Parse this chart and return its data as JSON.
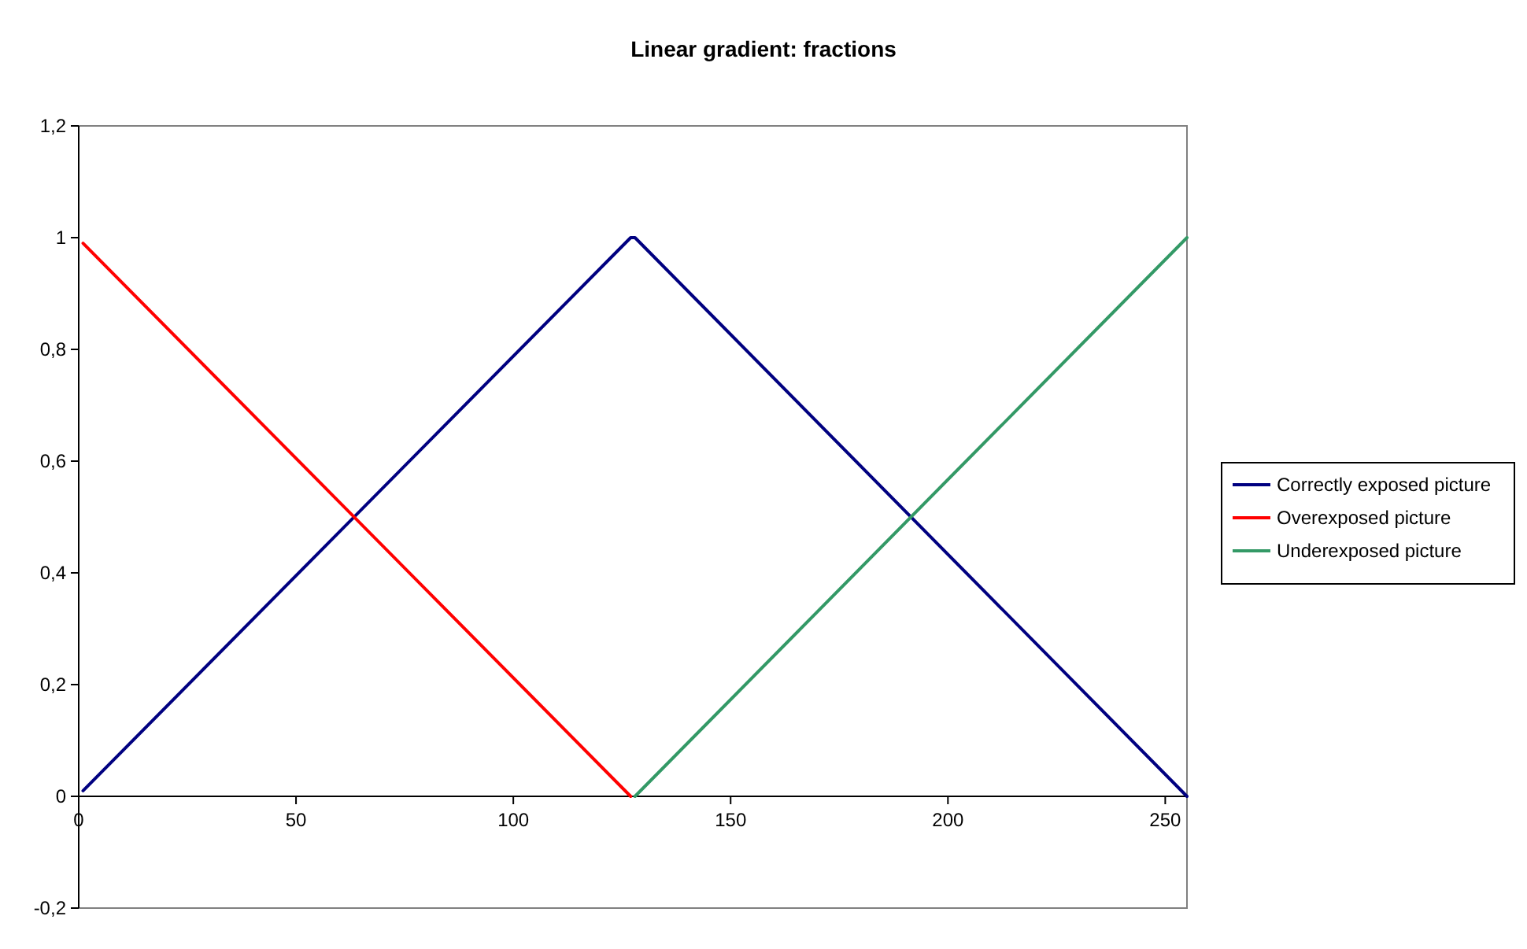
{
  "chart_data": {
    "type": "line",
    "title": "Linear gradient: fractions",
    "xlim": [
      0,
      255
    ],
    "xticks": [
      0,
      50,
      100,
      150,
      200,
      250
    ],
    "ylim": [
      -0.2,
      1.2
    ],
    "yticks": [
      {
        "value": -0.2,
        "label": "-0,2"
      },
      0,
      {
        "value": 0.2,
        "label": "0,2"
      },
      {
        "value": 0.4,
        "label": "0,4"
      },
      {
        "value": 0.6,
        "label": "0,6"
      },
      {
        "value": 0.8,
        "label": "0,8"
      },
      1,
      {
        "value": 1.2,
        "label": "1,2"
      }
    ],
    "legend": "right",
    "grid": false,
    "marker": "none",
    "line_style": "solid",
    "series": [
      {
        "name": "Correctly exposed picture",
        "color": "#000080",
        "x": [
          1,
          127,
          128,
          255
        ],
        "values": [
          0.01,
          1,
          1,
          0
        ]
      },
      {
        "name": "Overexposed picture",
        "color": "#ff0000",
        "x": [
          1,
          127
        ],
        "values": [
          0.99,
          0
        ]
      },
      {
        "name": "Underexposed picture",
        "color": "#339966",
        "x": [
          128,
          255
        ],
        "values": [
          0,
          1
        ]
      }
    ]
  }
}
